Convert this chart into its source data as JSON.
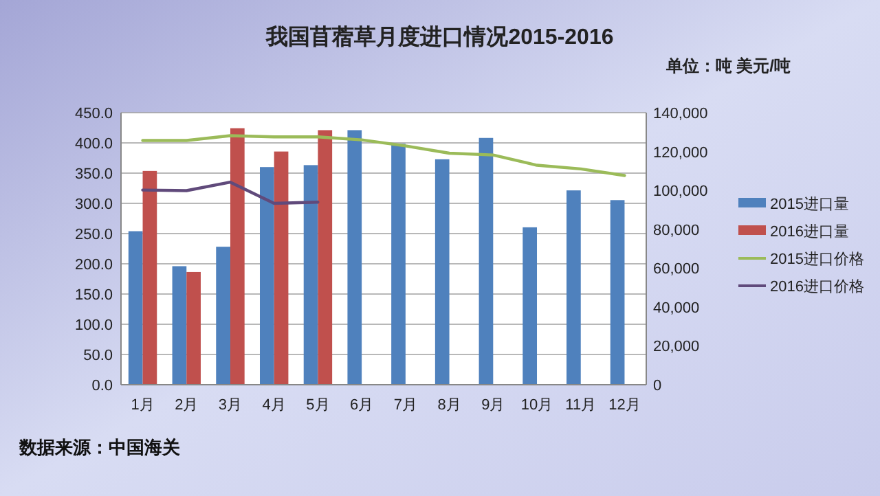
{
  "chart_data": {
    "type": "bar",
    "title": "我国苜蓿草月度进口情况2015-2016",
    "annotations": [
      "单位：吨 美元/吨",
      "数据来源：中国海关"
    ],
    "categories": [
      "1月",
      "2月",
      "3月",
      "4月",
      "5月",
      "6月",
      "7月",
      "8月",
      "9月",
      "10月",
      "11月",
      "12月"
    ],
    "series": [
      {
        "name": "2015进口量",
        "color": "#4f81bd",
        "axis": "y2",
        "values": [
          79000,
          61000,
          71000,
          112000,
          113000,
          131000,
          124000,
          116000,
          127000,
          81000,
          100000,
          95000
        ]
      },
      {
        "name": "2016进口量",
        "color": "#c0504d",
        "axis": "y2",
        "values": [
          110000,
          58000,
          132000,
          120000,
          131000,
          null,
          null,
          null,
          null,
          null,
          null,
          null
        ]
      },
      {
        "name": "2015进口价格",
        "type": "line",
        "color": "#9bbb59",
        "axis": "y",
        "values": [
          404,
          404,
          412,
          410,
          410,
          405,
          395,
          383,
          380,
          363,
          357,
          346
        ]
      },
      {
        "name": "2016进口价格",
        "type": "line",
        "color": "#604a7b",
        "axis": "y",
        "values": [
          322,
          321,
          335,
          300,
          302,
          null,
          null,
          null,
          null,
          null,
          null,
          null
        ]
      }
    ],
    "ylim": [
      0,
      450
    ],
    "yticks": [
      {
        "value": 0,
        "label": "0.0"
      },
      {
        "value": 50,
        "label": "50.0"
      },
      {
        "value": 100,
        "label": "100.0"
      },
      {
        "value": 150,
        "label": "150.0"
      },
      {
        "value": 200,
        "label": "200.0"
      },
      {
        "value": 250,
        "label": "250.0"
      },
      {
        "value": 300,
        "label": "300.0"
      },
      {
        "value": 350,
        "label": "350.0"
      },
      {
        "value": 400,
        "label": "400.0"
      },
      {
        "value": 450,
        "label": "450.0"
      }
    ],
    "y2lim": [
      0,
      140000
    ],
    "y2ticks": [
      0,
      {
        "value": 20000,
        "label": "20,000"
      },
      {
        "value": 40000,
        "label": "40,000"
      },
      {
        "value": 60000,
        "label": "60,000"
      },
      {
        "value": 80000,
        "label": "80,000"
      },
      {
        "value": 100000,
        "label": "100,000"
      },
      {
        "value": 120000,
        "label": "120,000"
      },
      {
        "value": 140000,
        "label": "140,000"
      }
    ],
    "grid": "y",
    "legend": "right",
    "marker": "none",
    "line_style": "solid"
  }
}
